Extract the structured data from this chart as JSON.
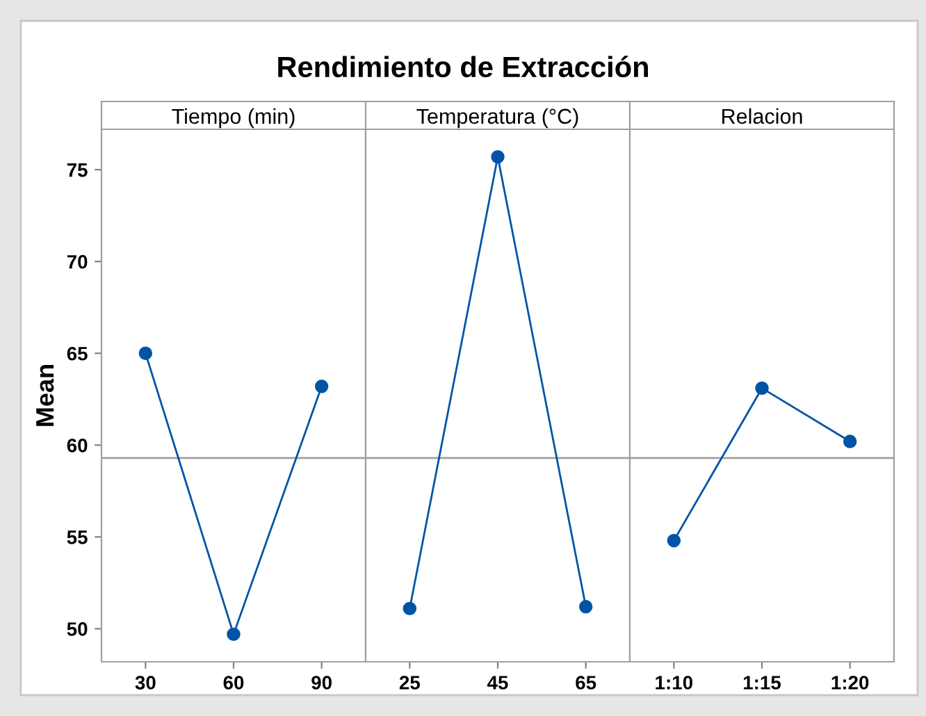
{
  "chart_data": [
    {
      "type": "line",
      "title": "Rendimiento de Extracción",
      "subtitle": "Tiempo (min)",
      "ylabel": "Mean",
      "categories": [
        "30",
        "60",
        "90"
      ],
      "series": [
        {
          "color": "#0054a6",
          "values": [
            65.0,
            49.7,
            63.2
          ]
        }
      ],
      "ylim": [
        48.2,
        77.2
      ],
      "yticks": [
        50,
        55,
        60,
        65,
        70,
        75
      ],
      "ref_lines": [
        {
          "axis": "y",
          "value": 59.3,
          "color": "#a0a0a0"
        }
      ],
      "marker": "circle",
      "line_style": "solid",
      "grid": false
    },
    {
      "type": "line",
      "subtitle": "Temperatura (°C)",
      "categories": [
        "25",
        "45",
        "65"
      ],
      "series": [
        {
          "color": "#0054a6",
          "values": [
            51.1,
            75.7,
            51.2
          ]
        }
      ],
      "ylim": [
        48.2,
        77.2
      ],
      "yticks": [
        50,
        55,
        60,
        65,
        70,
        75
      ],
      "tick_labels": "x",
      "ref_lines": [
        {
          "axis": "y",
          "value": 59.3,
          "color": "#a0a0a0"
        }
      ],
      "marker": "circle",
      "line_style": "solid",
      "grid": false
    },
    {
      "type": "line",
      "subtitle": "Relacion",
      "categories": [
        "1:10",
        "1:15",
        "1:20"
      ],
      "series": [
        {
          "color": "#0054a6",
          "values": [
            54.8,
            63.1,
            60.2
          ]
        }
      ],
      "ylim": [
        48.2,
        77.2
      ],
      "yticks": [
        50,
        55,
        60,
        65,
        70,
        75
      ],
      "tick_labels": "x",
      "ref_lines": [
        {
          "axis": "y",
          "value": 59.3,
          "color": "#a0a0a0"
        }
      ],
      "marker": "circle",
      "line_style": "solid",
      "grid": false
    }
  ]
}
